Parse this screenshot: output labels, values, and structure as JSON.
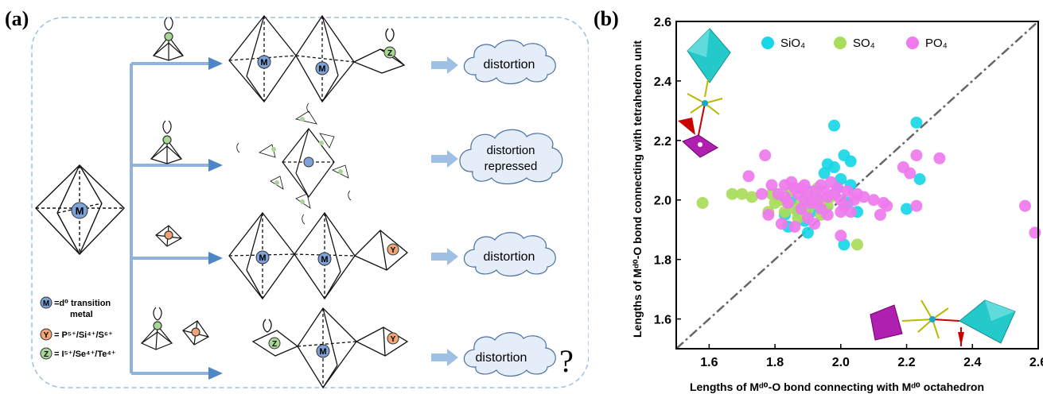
{
  "panel_a": {
    "label": "(a)",
    "cloud_texts": [
      "distortion",
      "distortion repressed",
      "distortion",
      "distortion"
    ],
    "question_mark": "?",
    "atom_M": "M",
    "atom_Y": "Y",
    "atom_Z": "Z",
    "legend": [
      {
        "symbol": "M",
        "text_line1": "=d⁰ transition",
        "text_line2": "metal",
        "color": "#7ea1d8"
      },
      {
        "symbol": "Y",
        "text_line1": "= P⁵⁺/Si⁴⁺/S⁶⁺",
        "text_line2": "",
        "color": "#f3a474"
      },
      {
        "symbol": "Z",
        "text_line1": "= I⁵⁺/Se⁴⁺/Te⁴⁺",
        "text_line2": "",
        "color": "#a8d694"
      }
    ]
  },
  "panel_b": {
    "label": "(b)",
    "chart_data": {
      "type": "scatter",
      "xlabel": "Lengths of Mᵈ⁰-O bond connecting with Mᵈ⁰ octahedron",
      "ylabel": "Lengths of Mᵈ⁰-O bond connecting with tetrahedron unit",
      "xlim": [
        1.5,
        2.6
      ],
      "ylim": [
        1.5,
        2.6
      ],
      "x_ticks": [
        "1.6",
        "1.8",
        "2.0",
        "2.2",
        "2.4",
        "2.6"
      ],
      "y_ticks": [
        "1.6",
        "1.8",
        "2.0",
        "2.2",
        "2.4",
        "2.6"
      ],
      "grid": false,
      "legend_position": "top-center",
      "reference_line": "y = x (dash-dot)",
      "series": [
        {
          "name": "SiO₄",
          "color": "#19d7e6",
          "points": [
            [
              1.98,
              2.25
            ],
            [
              2.23,
              2.26
            ],
            [
              1.96,
              2.12
            ],
            [
              1.98,
              2.11
            ],
            [
              2.01,
              2.15
            ],
            [
              2.03,
              2.13
            ],
            [
              1.95,
              2.09
            ],
            [
              2.0,
              2.07
            ],
            [
              1.99,
              2.04
            ],
            [
              2.03,
              2.05
            ],
            [
              1.93,
              2.0
            ],
            [
              1.91,
              1.96
            ],
            [
              1.87,
              1.96
            ],
            [
              1.83,
              1.95
            ],
            [
              1.85,
              2.0
            ],
            [
              1.89,
              1.93
            ],
            [
              1.95,
              1.97
            ],
            [
              2.05,
              1.96
            ],
            [
              2.2,
              1.97
            ],
            [
              2.24,
              2.07
            ],
            [
              1.84,
              1.91
            ],
            [
              1.9,
              1.89
            ],
            [
              2.01,
              1.85
            ],
            [
              1.98,
              2.02
            ],
            [
              1.9,
              2.03
            ],
            [
              1.94,
              1.99
            ],
            [
              2.02,
              1.99
            ]
          ]
        },
        {
          "name": "SO₄",
          "color": "#a9dc5a",
          "points": [
            [
              1.58,
              1.99
            ],
            [
              1.67,
              2.02
            ],
            [
              1.7,
              2.02
            ],
            [
              1.73,
              2.01
            ],
            [
              1.79,
              2.02
            ],
            [
              1.8,
              1.99
            ],
            [
              1.82,
              2.0
            ],
            [
              1.84,
              1.99
            ],
            [
              1.86,
              1.97
            ],
            [
              1.88,
              1.99
            ],
            [
              1.9,
              2.02
            ],
            [
              1.9,
              1.97
            ],
            [
              1.92,
              1.99
            ],
            [
              1.93,
              2.04
            ],
            [
              1.95,
              2.0
            ],
            [
              1.83,
              1.96
            ],
            [
              1.85,
              2.03
            ],
            [
              1.87,
              1.94
            ],
            [
              1.96,
              1.98
            ],
            [
              1.78,
              1.96
            ],
            [
              1.89,
              1.95
            ],
            [
              2.05,
              1.85
            ],
            [
              1.94,
              1.95
            ],
            [
              1.81,
              2.01
            ],
            [
              1.97,
              2.01
            ]
          ]
        },
        {
          "name": "PO₄",
          "color": "#ee7aee",
          "points": [
            [
              1.72,
              2.08
            ],
            [
              1.77,
              2.15
            ],
            [
              1.79,
              2.05
            ],
            [
              1.81,
              2.02
            ],
            [
              1.83,
              2.01
            ],
            [
              1.83,
              2.05
            ],
            [
              1.85,
              2.06
            ],
            [
              1.86,
              2.04
            ],
            [
              1.87,
              2.02
            ],
            [
              1.88,
              2.04
            ],
            [
              1.89,
              2.05
            ],
            [
              1.89,
              2.0
            ],
            [
              1.9,
              2.02
            ],
            [
              1.91,
              1.99
            ],
            [
              1.92,
              2.03
            ],
            [
              1.93,
              2.0
            ],
            [
              1.94,
              2.05
            ],
            [
              1.95,
              2.03
            ],
            [
              1.96,
              2.01
            ],
            [
              1.97,
              2.06
            ],
            [
              1.98,
              2.02
            ],
            [
              1.99,
              2.04
            ],
            [
              2.0,
              2.0
            ],
            [
              2.01,
              1.98
            ],
            [
              2.02,
              2.03
            ],
            [
              2.03,
              1.96
            ],
            [
              2.05,
              2.02
            ],
            [
              2.07,
              2.01
            ],
            [
              2.1,
              2.0
            ],
            [
              2.12,
              1.95
            ],
            [
              2.13,
              1.99
            ],
            [
              2.14,
              1.98
            ],
            [
              2.19,
              2.11
            ],
            [
              2.21,
              2.09
            ],
            [
              2.23,
              2.15
            ],
            [
              2.3,
              2.14
            ],
            [
              2.23,
              1.98
            ],
            [
              2.56,
              1.98
            ],
            [
              2.59,
              1.89
            ],
            [
              2.0,
              1.88
            ],
            [
              1.76,
              2.02
            ],
            [
              1.78,
              1.95
            ],
            [
              1.82,
              1.92
            ],
            [
              1.86,
              1.91
            ],
            [
              1.92,
              1.92
            ],
            [
              1.94,
              1.97
            ],
            [
              1.96,
              1.95
            ],
            [
              2.0,
              1.96
            ],
            [
              1.88,
              1.97
            ],
            [
              1.9,
              1.94
            ],
            [
              2.04,
              2.0
            ],
            [
              1.84,
              1.99
            ]
          ]
        }
      ]
    }
  }
}
